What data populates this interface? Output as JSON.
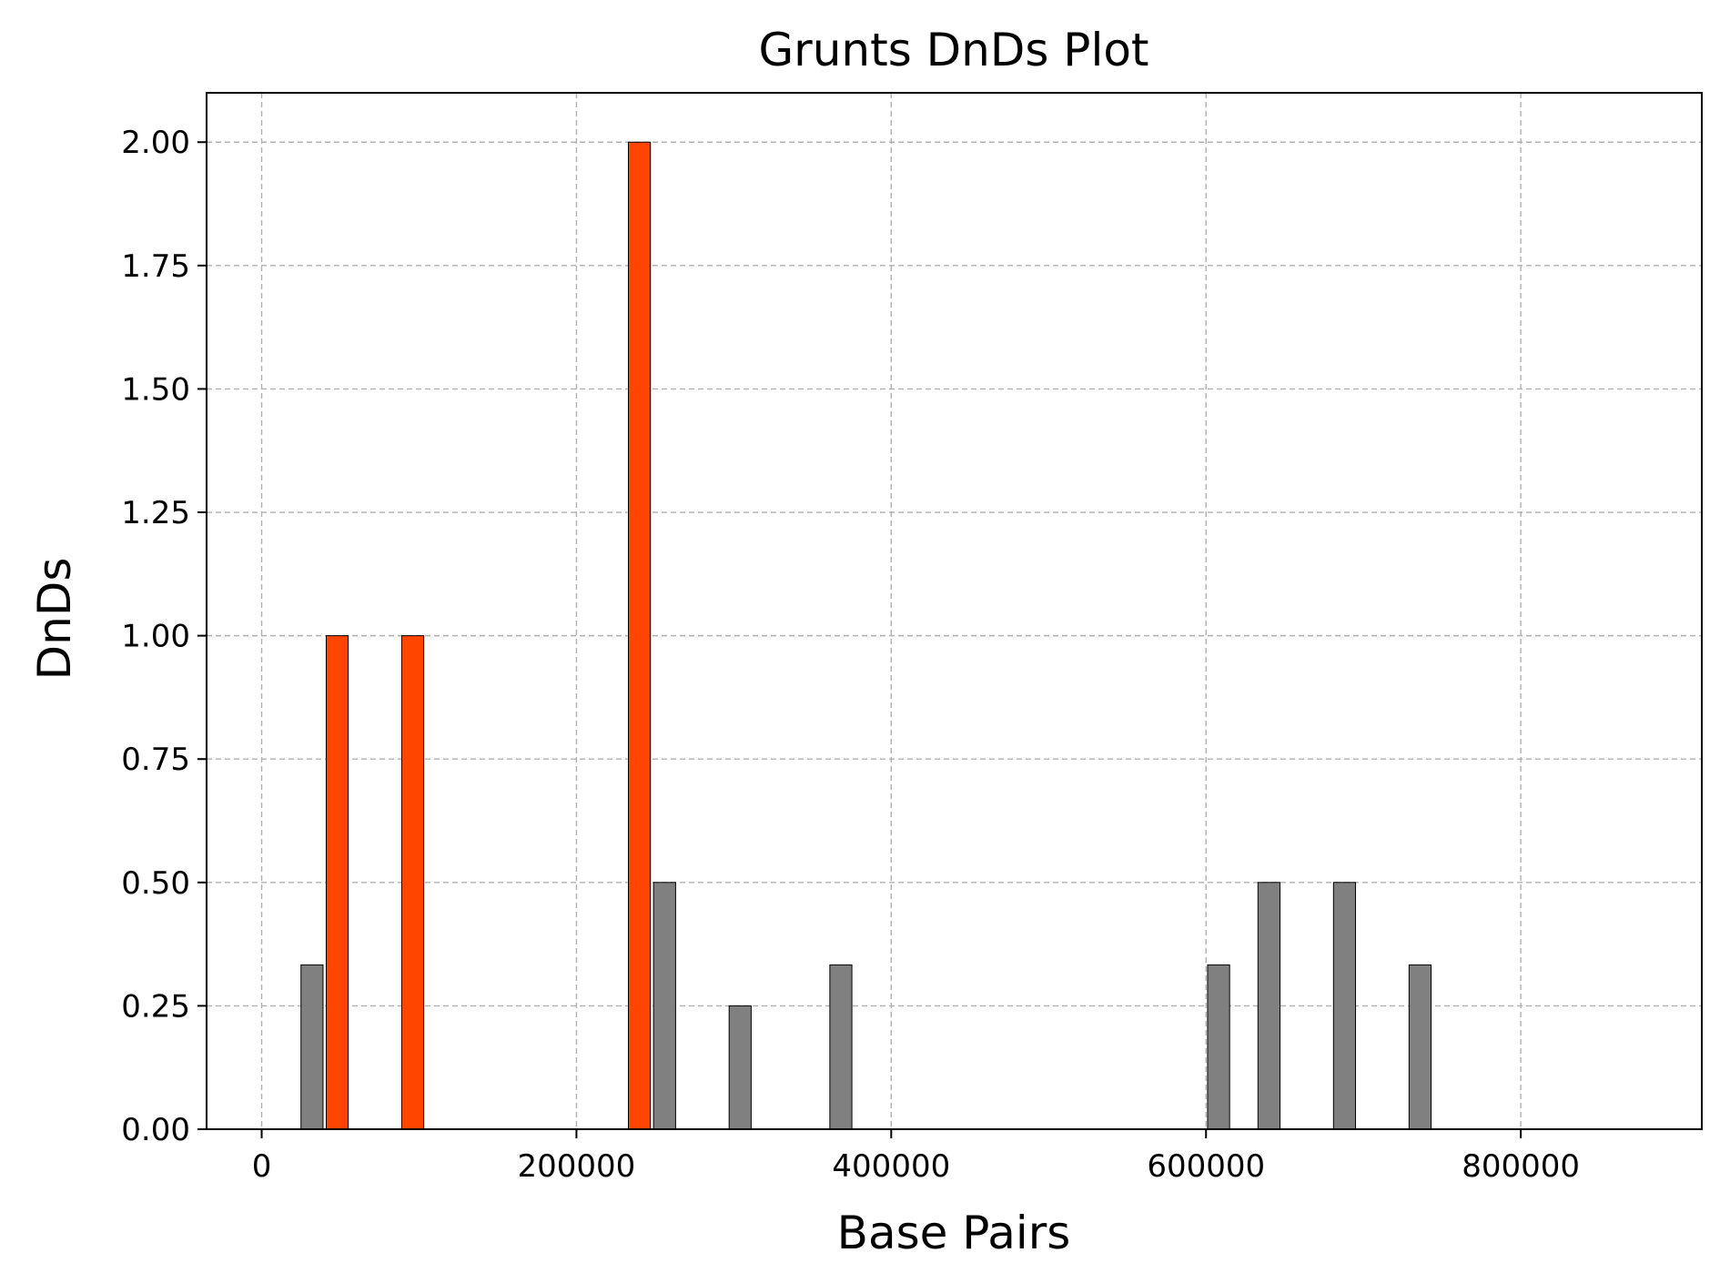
{
  "chart_data": {
    "type": "bar",
    "title": "Grunts DnDs Plot",
    "xlabel": "Base Pairs",
    "ylabel": "DnDs",
    "xlim": [
      -35000,
      915000
    ],
    "ylim": [
      0,
      2.1
    ],
    "xticks": [
      0,
      200000,
      400000,
      600000,
      800000
    ],
    "xtick_labels": [
      "0",
      "200000",
      "400000",
      "600000",
      "800000"
    ],
    "yticks": [
      0,
      0.25,
      0.5,
      0.75,
      1.0,
      1.25,
      1.5,
      1.75,
      2.0
    ],
    "ytick_labels": [
      "0.00",
      "0.25",
      "0.50",
      "0.75",
      "1.00",
      "1.25",
      "1.50",
      "1.75",
      "2.00"
    ],
    "grid": true,
    "bar_width": 14000,
    "colors": {
      "high": "#ff4500",
      "low": "#808080",
      "edge": "#000000"
    },
    "bars": [
      {
        "x": 32000,
        "value": 0.333,
        "color": "low"
      },
      {
        "x": 48000,
        "value": 1.0,
        "color": "high"
      },
      {
        "x": 96000,
        "value": 1.0,
        "color": "high"
      },
      {
        "x": 240000,
        "value": 2.0,
        "color": "high"
      },
      {
        "x": 256000,
        "value": 0.5,
        "color": "low"
      },
      {
        "x": 304000,
        "value": 0.25,
        "color": "low"
      },
      {
        "x": 368000,
        "value": 0.333,
        "color": "low"
      },
      {
        "x": 608000,
        "value": 0.333,
        "color": "low"
      },
      {
        "x": 640000,
        "value": 0.5,
        "color": "low"
      },
      {
        "x": 688000,
        "value": 0.5,
        "color": "low"
      },
      {
        "x": 736000,
        "value": 0.333,
        "color": "low"
      }
    ]
  }
}
